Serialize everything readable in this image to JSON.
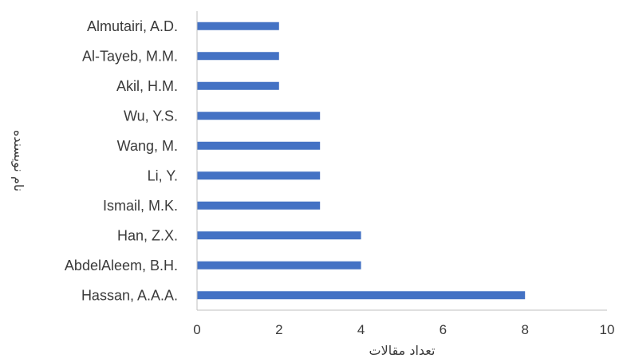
{
  "chart_data": {
    "type": "bar",
    "orientation": "horizontal",
    "categories": [
      "Hassan, A.A.A.",
      "AbdelAleem, B.H.",
      "Han, Z.X.",
      "Ismail, M.K.",
      "Li, Y.",
      "Wang, M.",
      "Wu, Y.S.",
      "Akil, H.M.",
      "Al-Tayeb, M.M.",
      "Almutairi, A.D."
    ],
    "values": [
      8,
      4,
      4,
      3,
      3,
      3,
      3,
      2,
      2,
      2
    ],
    "xlim": [
      0,
      10
    ],
    "xticks": [
      "0",
      "2",
      "4",
      "6",
      "8",
      "10"
    ],
    "xlabel": "تعداد مقالات",
    "ylabel": "نام نویسنده",
    "title": "",
    "grid": false,
    "bar_color": "#4472C4",
    "axis_color": "#bfbfbf",
    "text_color": "#3a3a3a"
  }
}
